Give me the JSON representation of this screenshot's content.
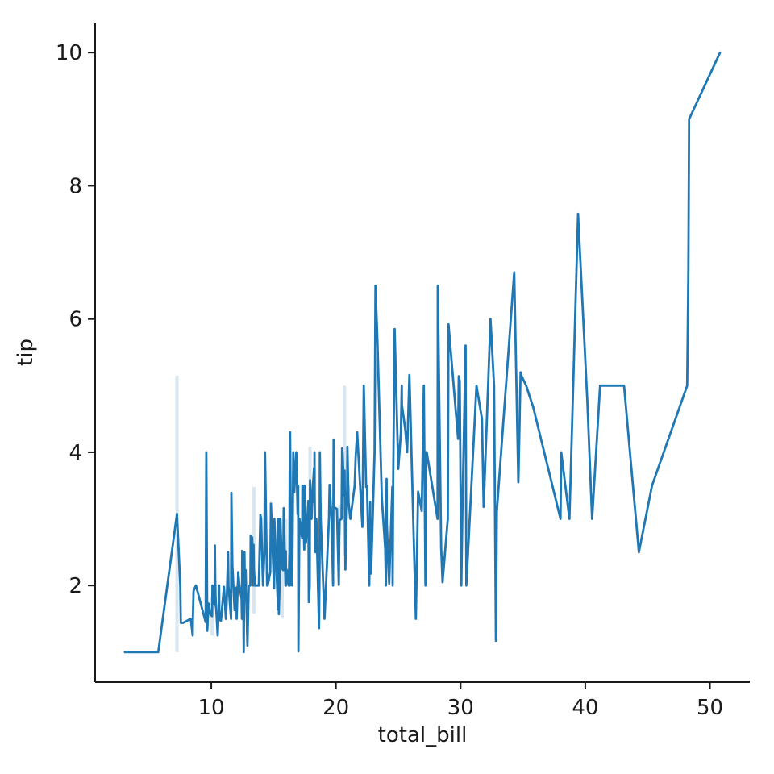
{
  "chart_data": {
    "type": "line",
    "title": "",
    "xlabel": "total_bill",
    "ylabel": "tip",
    "xlim": [
      0.683,
      53.197
    ],
    "ylim": [
      0.55,
      10.45
    ],
    "xticks": [
      10,
      20,
      30,
      40,
      50
    ],
    "yticks": [
      2,
      4,
      6,
      8,
      10
    ],
    "grid": false,
    "legend": null,
    "line_color": "#1f77b4",
    "band_color": "rgba(31,119,180,0.18)",
    "axis_color": "#1a1a1a",
    "points": [
      [
        16.99,
        1.01
      ],
      [
        10.34,
        1.66
      ],
      [
        21.01,
        3.5
      ],
      [
        23.68,
        3.31
      ],
      [
        24.59,
        3.61
      ],
      [
        25.29,
        4.71
      ],
      [
        8.77,
        2.0
      ],
      [
        26.88,
        3.12
      ],
      [
        15.04,
        1.96
      ],
      [
        14.78,
        3.23
      ],
      [
        10.27,
        1.71
      ],
      [
        35.26,
        5.0
      ],
      [
        15.42,
        1.57
      ],
      [
        18.43,
        3.0
      ],
      [
        14.83,
        3.02
      ],
      [
        21.58,
        3.92
      ],
      [
        10.33,
        1.67
      ],
      [
        16.29,
        3.71
      ],
      [
        16.97,
        3.5
      ],
      [
        20.65,
        3.35
      ],
      [
        17.92,
        4.08
      ],
      [
        20.29,
        2.75
      ],
      [
        15.77,
        2.23
      ],
      [
        39.42,
        7.58
      ],
      [
        19.82,
        3.18
      ],
      [
        17.81,
        2.34
      ],
      [
        13.37,
        2.0
      ],
      [
        12.69,
        2.0
      ],
      [
        21.7,
        4.3
      ],
      [
        19.65,
        3.0
      ],
      [
        9.55,
        1.45
      ],
      [
        18.35,
        2.5
      ],
      [
        15.06,
        3.0
      ],
      [
        20.69,
        2.45
      ],
      [
        17.78,
        3.27
      ],
      [
        24.06,
        3.6
      ],
      [
        16.31,
        2.0
      ],
      [
        16.93,
        3.07
      ],
      [
        18.69,
        2.31
      ],
      [
        31.27,
        5.0
      ],
      [
        16.04,
        2.24
      ],
      [
        17.46,
        2.54
      ],
      [
        13.94,
        3.06
      ],
      [
        9.68,
        1.32
      ],
      [
        30.4,
        5.6
      ],
      [
        18.29,
        3.0
      ],
      [
        22.23,
        5.0
      ],
      [
        32.4,
        6.0
      ],
      [
        28.55,
        2.05
      ],
      [
        18.04,
        3.0
      ],
      [
        12.54,
        2.5
      ],
      [
        10.29,
        2.6
      ],
      [
        34.81,
        5.2
      ],
      [
        9.94,
        1.56
      ],
      [
        25.56,
        4.34
      ],
      [
        19.49,
        3.51
      ],
      [
        38.01,
        3.0
      ],
      [
        26.41,
        1.5
      ],
      [
        11.24,
        1.76
      ],
      [
        48.27,
        6.73
      ],
      [
        20.29,
        3.21
      ],
      [
        13.81,
        2.0
      ],
      [
        11.02,
        1.98
      ],
      [
        18.29,
        3.76
      ],
      [
        17.59,
        2.64
      ],
      [
        20.08,
        3.15
      ],
      [
        16.45,
        2.47
      ],
      [
        3.07,
        1.0
      ],
      [
        20.23,
        2.01
      ],
      [
        15.01,
        2.09
      ],
      [
        12.02,
        1.97
      ],
      [
        17.07,
        3.0
      ],
      [
        26.86,
        3.14
      ],
      [
        25.28,
        5.0
      ],
      [
        14.73,
        2.2
      ],
      [
        10.51,
        1.25
      ],
      [
        17.92,
        3.08
      ],
      [
        27.2,
        4.0
      ],
      [
        22.76,
        3.0
      ],
      [
        17.29,
        2.71
      ],
      [
        19.44,
        3.0
      ],
      [
        16.66,
        3.4
      ],
      [
        10.07,
        1.83
      ],
      [
        32.68,
        5.0
      ],
      [
        15.98,
        2.03
      ],
      [
        34.83,
        5.17
      ],
      [
        13.03,
        2.0
      ],
      [
        18.28,
        4.0
      ],
      [
        24.71,
        5.85
      ],
      [
        21.16,
        3.0
      ],
      [
        28.97,
        3.0
      ],
      [
        22.49,
        3.5
      ],
      [
        5.75,
        1.0
      ],
      [
        16.32,
        4.3
      ],
      [
        22.75,
        3.25
      ],
      [
        40.17,
        4.73
      ],
      [
        27.28,
        4.0
      ],
      [
        12.03,
        1.5
      ],
      [
        21.01,
        3.0
      ],
      [
        12.46,
        1.5
      ],
      [
        11.35,
        2.5
      ],
      [
        15.38,
        3.0
      ],
      [
        44.3,
        2.5
      ],
      [
        22.42,
        3.48
      ],
      [
        20.92,
        4.08
      ],
      [
        15.36,
        1.64
      ],
      [
        20.49,
        4.06
      ],
      [
        25.21,
        4.29
      ],
      [
        18.24,
        3.76
      ],
      [
        14.31,
        4.0
      ],
      [
        14.0,
        3.0
      ],
      [
        7.25,
        1.0
      ],
      [
        38.07,
        4.0
      ],
      [
        23.95,
        2.55
      ],
      [
        25.71,
        4.0
      ],
      [
        17.31,
        3.5
      ],
      [
        29.93,
        5.07
      ],
      [
        10.65,
        1.5
      ],
      [
        12.43,
        1.8
      ],
      [
        24.08,
        2.92
      ],
      [
        11.69,
        2.31
      ],
      [
        13.42,
        1.68
      ],
      [
        14.26,
        2.5
      ],
      [
        15.95,
        2.0
      ],
      [
        12.48,
        2.52
      ],
      [
        29.8,
        4.2
      ],
      [
        8.52,
        1.48
      ],
      [
        14.52,
        2.0
      ],
      [
        11.38,
        2.0
      ],
      [
        22.82,
        2.18
      ],
      [
        19.08,
        1.5
      ],
      [
        20.27,
        2.83
      ],
      [
        11.17,
        1.5
      ],
      [
        12.26,
        2.0
      ],
      [
        18.26,
        3.25
      ],
      [
        8.51,
        1.25
      ],
      [
        10.33,
        2.0
      ],
      [
        14.15,
        2.0
      ],
      [
        16.0,
        2.0
      ],
      [
        13.16,
        2.75
      ],
      [
        17.47,
        3.5
      ],
      [
        34.3,
        6.7
      ],
      [
        41.19,
        5.0
      ],
      [
        27.05,
        5.0
      ],
      [
        16.43,
        2.3
      ],
      [
        8.35,
        1.5
      ],
      [
        18.64,
        1.36
      ],
      [
        11.87,
        1.63
      ],
      [
        9.78,
        1.73
      ],
      [
        7.51,
        2.0
      ],
      [
        14.07,
        2.5
      ],
      [
        13.13,
        2.0
      ],
      [
        17.26,
        2.74
      ],
      [
        24.55,
        2.0
      ],
      [
        19.77,
        2.0
      ],
      [
        29.85,
        5.14
      ],
      [
        48.17,
        5.0
      ],
      [
        25.0,
        3.75
      ],
      [
        13.39,
        2.61
      ],
      [
        16.49,
        2.0
      ],
      [
        21.5,
        3.5
      ],
      [
        12.66,
        2.5
      ],
      [
        16.21,
        2.0
      ],
      [
        13.81,
        2.0
      ],
      [
        17.51,
        3.0
      ],
      [
        24.52,
        3.48
      ],
      [
        20.76,
        2.24
      ],
      [
        31.71,
        4.5
      ],
      [
        10.59,
        1.61
      ],
      [
        10.63,
        2.0
      ],
      [
        50.81,
        10.0
      ],
      [
        15.81,
        3.16
      ],
      [
        7.25,
        5.15
      ],
      [
        31.85,
        3.18
      ],
      [
        16.82,
        4.0
      ],
      [
        32.9,
        3.11
      ],
      [
        17.89,
        2.0
      ],
      [
        14.48,
        2.0
      ],
      [
        9.6,
        4.0
      ],
      [
        34.63,
        3.55
      ],
      [
        34.65,
        3.68
      ],
      [
        23.33,
        5.65
      ],
      [
        45.35,
        3.5
      ],
      [
        23.17,
        6.5
      ],
      [
        40.55,
        3.0
      ],
      [
        20.69,
        5.0
      ],
      [
        20.9,
        3.5
      ],
      [
        30.46,
        2.0
      ],
      [
        18.15,
        3.5
      ],
      [
        23.1,
        4.0
      ],
      [
        15.69,
        1.5
      ],
      [
        19.81,
        4.19
      ],
      [
        28.44,
        2.56
      ],
      [
        15.48,
        2.02
      ],
      [
        16.58,
        4.0
      ],
      [
        7.56,
        1.44
      ],
      [
        10.34,
        2.0
      ],
      [
        43.11,
        5.0
      ],
      [
        13.0,
        2.0
      ],
      [
        13.51,
        2.0
      ],
      [
        18.71,
        4.0
      ],
      [
        12.74,
        2.01
      ],
      [
        13.0,
        2.0
      ],
      [
        16.4,
        2.5
      ],
      [
        20.53,
        4.0
      ],
      [
        16.47,
        3.23
      ],
      [
        26.59,
        3.41
      ],
      [
        38.73,
        3.0
      ],
      [
        24.27,
        2.03
      ],
      [
        12.76,
        2.23
      ],
      [
        30.06,
        2.0
      ],
      [
        25.89,
        5.16
      ],
      [
        48.33,
        9.0
      ],
      [
        13.27,
        2.5
      ],
      [
        28.17,
        6.5
      ],
      [
        12.9,
        1.1
      ],
      [
        28.15,
        3.0
      ],
      [
        11.59,
        1.5
      ],
      [
        7.74,
        1.44
      ],
      [
        30.14,
        3.09
      ],
      [
        12.16,
        2.2
      ],
      [
        13.42,
        3.48
      ],
      [
        8.58,
        1.92
      ],
      [
        15.98,
        3.0
      ],
      [
        13.42,
        1.58
      ],
      [
        16.27,
        2.5
      ],
      [
        10.09,
        2.0
      ],
      [
        20.45,
        3.0
      ],
      [
        13.28,
        2.72
      ],
      [
        22.12,
        2.88
      ],
      [
        24.01,
        2.0
      ],
      [
        15.69,
        3.0
      ],
      [
        11.61,
        3.39
      ],
      [
        10.77,
        1.47
      ],
      [
        15.53,
        3.0
      ],
      [
        10.07,
        1.25
      ],
      [
        12.6,
        1.0
      ],
      [
        32.83,
        1.17
      ],
      [
        35.83,
        4.67
      ],
      [
        29.03,
        5.92
      ],
      [
        27.18,
        2.0
      ],
      [
        22.67,
        2.0
      ],
      [
        17.82,
        1.75
      ],
      [
        18.78,
        3.0
      ]
    ]
  }
}
